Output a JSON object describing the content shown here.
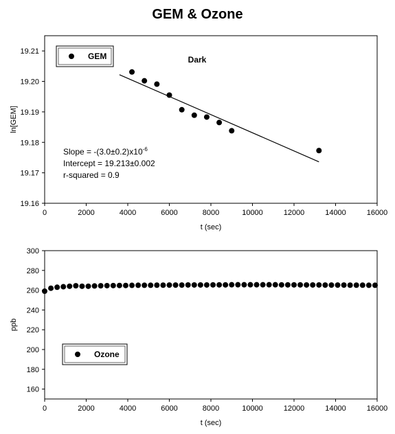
{
  "title": "GEM & Ozone",
  "chart_data": [
    {
      "type": "scatter",
      "xlabel": "t (sec)",
      "ylabel": "ln[GEM]",
      "xlim": [
        0,
        16000
      ],
      "ylim": [
        19.16,
        19.215
      ],
      "xticks": [
        0,
        2000,
        4000,
        6000,
        8000,
        10000,
        12000,
        14000,
        16000
      ],
      "yticks": [
        19.16,
        19.17,
        19.18,
        19.19,
        19.2,
        19.21
      ],
      "yticklabels": [
        "19.16",
        "19.17",
        "19.18",
        "19.19",
        "19.20",
        "19.21"
      ],
      "grid": false,
      "legend": {
        "position": "top-left",
        "entries": [
          "GEM"
        ]
      },
      "annotation": "Dark",
      "series": [
        {
          "name": "GEM",
          "x": [
            4200,
            4800,
            5400,
            6000,
            6600,
            7200,
            7800,
            8400,
            9000,
            13200
          ],
          "y": [
            19.2031,
            19.2002,
            19.1991,
            19.1955,
            19.1907,
            19.1889,
            19.1883,
            19.1865,
            19.1838,
            19.1773
          ]
        }
      ],
      "fit_line": {
        "x": [
          3600,
          13200
        ],
        "y": [
          19.2022,
          19.1736
        ]
      },
      "stats": {
        "slope_text": "Slope = -(3.0±0.2)x10",
        "slope_exponent": "-6",
        "intercept_text": "Intercept = 19.213±0.002",
        "r_squared_text": "r-squared = 0.9"
      }
    },
    {
      "type": "scatter",
      "xlabel": "t (sec)",
      "ylabel": "ppb",
      "xlim": [
        0,
        16000
      ],
      "ylim": [
        150,
        300
      ],
      "xticks": [
        0,
        2000,
        4000,
        6000,
        8000,
        10000,
        12000,
        14000,
        16000
      ],
      "yticks": [
        160,
        180,
        200,
        220,
        240,
        260,
        280,
        300
      ],
      "grid": false,
      "legend": {
        "position": "bottom-left",
        "entries": [
          "Ozone"
        ]
      },
      "series": [
        {
          "name": "Ozone",
          "x": [
            0,
            300,
            600,
            900,
            1200,
            1500,
            1800,
            2100,
            2400,
            2700,
            3000,
            3300,
            3600,
            3900,
            4200,
            4500,
            4800,
            5100,
            5400,
            5700,
            6000,
            6300,
            6600,
            6900,
            7200,
            7500,
            7800,
            8100,
            8400,
            8700,
            9000,
            9300,
            9600,
            9900,
            10200,
            10500,
            10800,
            11100,
            11400,
            11700,
            12000,
            12300,
            12600,
            12900,
            13200,
            13500,
            13800,
            14100,
            14400,
            14700,
            15000,
            15300,
            15600,
            15900
          ],
          "y": [
            259,
            262,
            263,
            263.5,
            264,
            264.5,
            264,
            264,
            264.3,
            264.5,
            264.6,
            264.7,
            264.8,
            264.8,
            264.9,
            265,
            265,
            265,
            265.1,
            265.1,
            265.2,
            265.2,
            265.2,
            265.3,
            265.3,
            265.3,
            265.3,
            265.4,
            265.4,
            265.4,
            265.5,
            265.5,
            265.5,
            265.5,
            265.5,
            265.5,
            265.5,
            265.5,
            265.4,
            265.4,
            265.4,
            265.4,
            265.3,
            265.3,
            265.3,
            265.2,
            265.2,
            265.2,
            265.2,
            265.1,
            265.1,
            265.1,
            265,
            265
          ]
        }
      ]
    }
  ]
}
